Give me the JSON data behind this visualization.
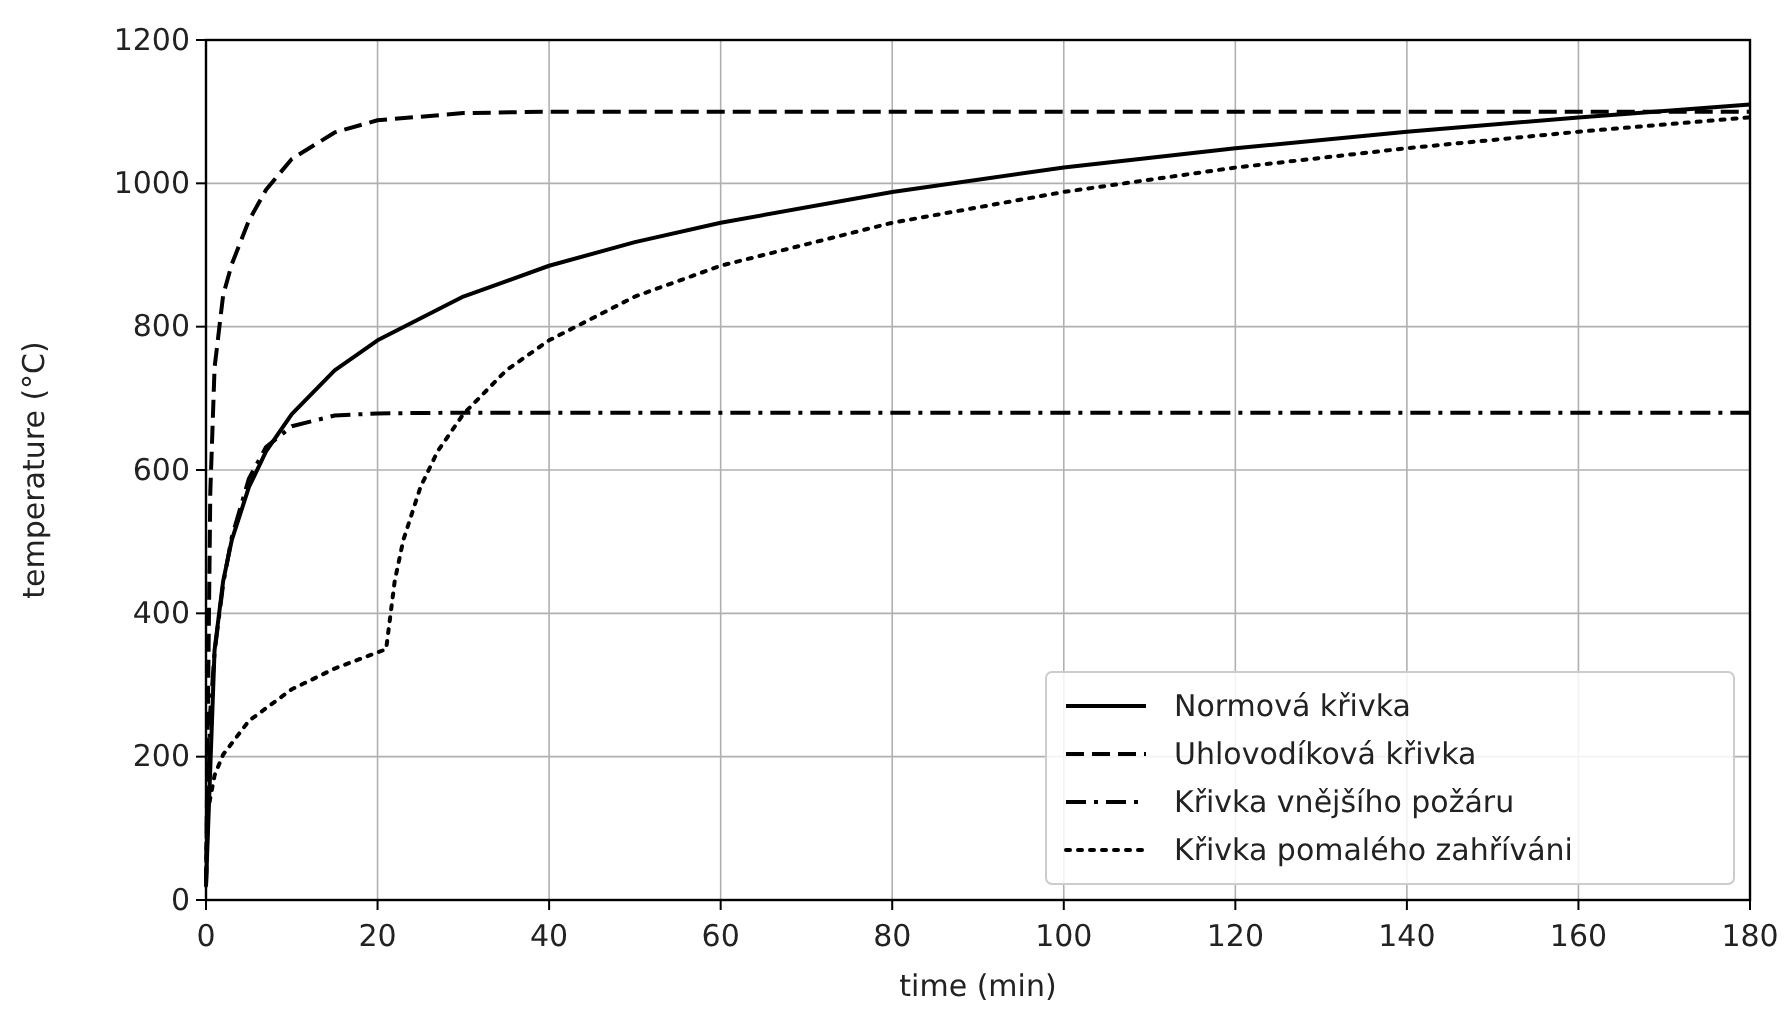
{
  "chart_data": {
    "type": "line",
    "xlabel": "time (min)",
    "ylabel": "temperature (°C)",
    "xlim": [
      0,
      180
    ],
    "xticks": [
      0,
      20,
      40,
      60,
      80,
      100,
      120,
      140,
      160,
      180
    ],
    "ylim": [
      0,
      1200
    ],
    "yticks": [
      0,
      200,
      400,
      600,
      800,
      1000,
      1200
    ],
    "grid": true,
    "legend": "bottom right",
    "marker": "none",
    "series": [
      {
        "name": "Normová křivka",
        "color": "#000000",
        "line_style": "solid",
        "x": [
          0,
          1,
          2,
          3,
          5,
          7,
          10,
          15,
          20,
          30,
          40,
          50,
          60,
          80,
          100,
          120,
          140,
          160,
          180
        ],
        "values": [
          20,
          349,
          445,
          502,
          576,
          626,
          678,
          739,
          781,
          842,
          885,
          918,
          945,
          988,
          1022,
          1049,
          1072,
          1092,
          1110
        ]
      },
      {
        "name": "Uhlovodíková křivka",
        "color": "#000000",
        "line_style": "dashed",
        "x": [
          0,
          0.5,
          1,
          2,
          3,
          5,
          7,
          10,
          15,
          20,
          30,
          40,
          180
        ],
        "values": [
          20,
          568,
          743,
          844,
          887,
          948,
          991,
          1034,
          1071,
          1088,
          1098,
          1100,
          1100
        ]
      },
      {
        "name": "Křivka vnějšího požáru",
        "color": "#000000",
        "line_style": "dashdot",
        "x": [
          0,
          0.5,
          1,
          2,
          3,
          5,
          7,
          10,
          15,
          20,
          30,
          180
        ],
        "values": [
          20,
          263,
          346,
          441,
          506,
          588,
          632,
          661,
          676,
          679,
          680,
          680
        ]
      },
      {
        "name": "Křivka pomalého zahříváni",
        "color": "#000000",
        "line_style": "dotted",
        "x": [
          0,
          0.1,
          0.2,
          1,
          2,
          5,
          10,
          15,
          21,
          22,
          23,
          25,
          27,
          30,
          35,
          40,
          50,
          60,
          80,
          100,
          120,
          140,
          160,
          180
        ],
        "values": [
          20,
          107,
          123,
          174,
          203,
          250,
          294,
          323,
          350,
          445,
          502,
          576,
          626,
          678,
          739,
          781,
          842,
          885,
          945,
          988,
          1022,
          1049,
          1072,
          1092
        ]
      }
    ]
  }
}
